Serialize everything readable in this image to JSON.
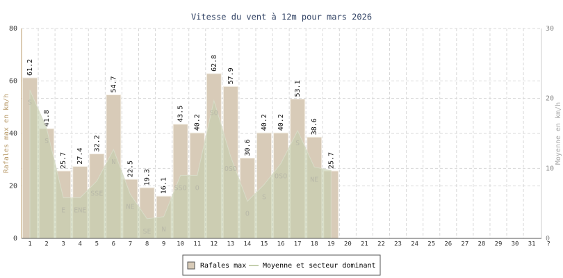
{
  "chart_data": {
    "type": "bar",
    "title": "Vitesse du vent à 12m pour mars 2026",
    "y_label": "Rafales max en km/h",
    "y2_label": "Moyenne en km/h",
    "categories": [
      "1",
      "2",
      "3",
      "4",
      "5",
      "6",
      "7",
      "8",
      "9",
      "10",
      "11",
      "12",
      "13",
      "14",
      "15",
      "16",
      "17",
      "18",
      "19",
      "20",
      "21",
      "22",
      "23",
      "24",
      "25",
      "26",
      "27",
      "28",
      "29",
      "30",
      "31",
      "?"
    ],
    "series": [
      {
        "name": "Rafales max",
        "color": "#d8cbb8",
        "values": [
          61.2,
          41.8,
          25.7,
          27.4,
          32.2,
          54.7,
          22.5,
          19.3,
          16.1,
          43.5,
          40.2,
          62.8,
          57.9,
          30.6,
          40.2,
          40.2,
          53.1,
          38.6,
          25.7,
          null,
          null,
          null,
          null,
          null,
          null,
          null,
          null,
          null,
          null,
          null,
          null,
          null
        ]
      },
      {
        "name": "Moyenne et secteur dominant",
        "color": "#c4cfae",
        "axis": "y2",
        "values": [
          21.2,
          15.7,
          5.8,
          5.8,
          8.2,
          12.7,
          6.3,
          2.8,
          3.1,
          9.0,
          9.0,
          19.7,
          11.7,
          5.3,
          7.7,
          10.7,
          15.4,
          10.2,
          9.7,
          null,
          null,
          null,
          null,
          null,
          null,
          null,
          null,
          null,
          null,
          null,
          null,
          null
        ],
        "sectors": [
          "S",
          "S",
          "E",
          "ENE",
          "SSE",
          "N",
          "NE",
          "SE",
          "N",
          "SSO",
          "O",
          "SO",
          "OSO",
          "O",
          "S",
          "OSO",
          "S",
          "NE",
          null,
          null,
          null,
          null,
          null,
          null,
          null,
          null,
          null,
          null,
          null,
          null,
          null,
          null
        ]
      }
    ],
    "ylim": [
      0,
      80
    ],
    "yticks": [
      0,
      20,
      40,
      60,
      80
    ],
    "y2lim": [
      0,
      30
    ],
    "y2ticks": [
      0,
      10,
      20,
      30
    ],
    "grid": true
  }
}
